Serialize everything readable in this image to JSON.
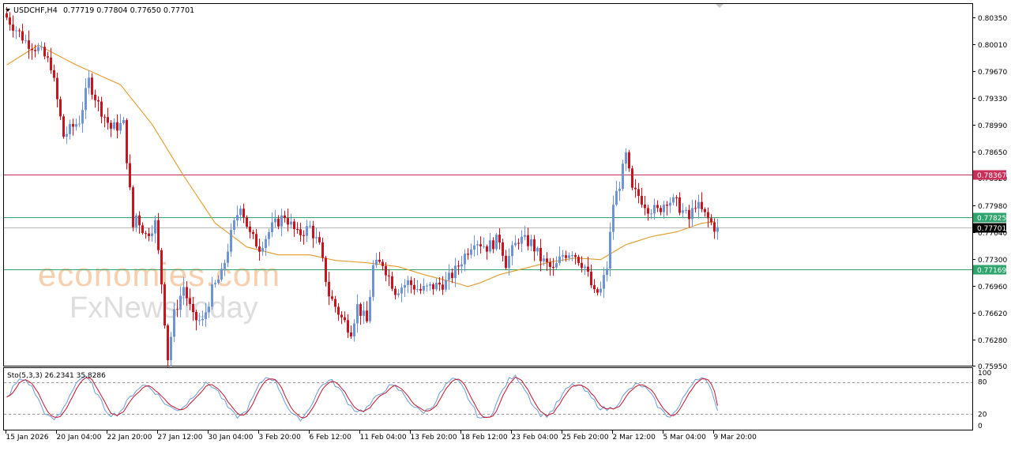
{
  "header": {
    "symbol": "USDCHF,H4",
    "ohlc": "0.77719 0.77804 0.77650 0.77701"
  },
  "watermark": {
    "line1": "economies.com",
    "line2": "FxNewsToday"
  },
  "colors": {
    "bull": "#6d94d8",
    "bear": "#d0101a",
    "ma": "#e39a28",
    "resistance": "#c8305a",
    "support": "#2fa56d",
    "current": "#000000",
    "stoch_main": "#6b9bd8",
    "stoch_signal": "#c4142a"
  },
  "chart_data": {
    "type": "candlestick",
    "symbol": "USDCHF",
    "timeframe": "H4",
    "ylim": [
      0.7595,
      0.8052
    ],
    "y_ticks": [
      "0.80350",
      "0.80010",
      "0.79670",
      "0.79330",
      "0.78990",
      "0.78650",
      "0.78320",
      "0.77980",
      "0.77640",
      "0.77300",
      "0.76960",
      "0.76620",
      "0.76280",
      "0.75950"
    ],
    "x_labels": [
      {
        "label": "15 Jan 2026",
        "bar": 0
      },
      {
        "label": "20 Jan 04:00",
        "bar": 16
      },
      {
        "label": "22 Jan 20:00",
        "bar": 32
      },
      {
        "label": "27 Jan 12:00",
        "bar": 48
      },
      {
        "label": "30 Jan 04:00",
        "bar": 64
      },
      {
        "label": "3 Feb 20:00",
        "bar": 80
      },
      {
        "label": "6 Feb 12:00",
        "bar": 96
      },
      {
        "label": "11 Feb 04:00",
        "bar": 112
      },
      {
        "label": "13 Feb 20:00",
        "bar": 128
      },
      {
        "label": "18 Feb 12:00",
        "bar": 144
      },
      {
        "label": "23 Feb 04:00",
        "bar": 160
      },
      {
        "label": "25 Feb 20:00",
        "bar": 176
      },
      {
        "label": "2 Mar 12:00",
        "bar": 192
      },
      {
        "label": "5 Mar 04:00",
        "bar": 208
      },
      {
        "label": "9 Mar 20:00",
        "bar": 224
      }
    ],
    "levels": [
      {
        "price": 0.78367,
        "label": "0.78367",
        "role": "resistance"
      },
      {
        "price": 0.77825,
        "label": "0.77825",
        "role": "support"
      },
      {
        "price": 0.77169,
        "label": "0.77169",
        "role": "support"
      },
      {
        "price": 0.77701,
        "label": "0.77701",
        "role": "current"
      }
    ],
    "waypoints": [
      [
        0,
        0.8035
      ],
      [
        6,
        0.8005
      ],
      [
        10,
        0.7995
      ],
      [
        14,
        0.7975
      ],
      [
        18,
        0.7885
      ],
      [
        23,
        0.7905
      ],
      [
        26,
        0.7955
      ],
      [
        29,
        0.7925
      ],
      [
        33,
        0.7895
      ],
      [
        37,
        0.79
      ],
      [
        39,
        0.7815
      ],
      [
        40,
        0.777
      ],
      [
        41,
        0.7785
      ],
      [
        44,
        0.776
      ],
      [
        47,
        0.7775
      ],
      [
        49,
        0.77
      ],
      [
        51,
        0.7605
      ],
      [
        53,
        0.766
      ],
      [
        56,
        0.7695
      ],
      [
        59,
        0.7655
      ],
      [
        62,
        0.765
      ],
      [
        65,
        0.769
      ],
      [
        68,
        0.771
      ],
      [
        71,
        0.776
      ],
      [
        74,
        0.78
      ],
      [
        77,
        0.776
      ],
      [
        80,
        0.7745
      ],
      [
        84,
        0.777
      ],
      [
        88,
        0.7785
      ],
      [
        92,
        0.776
      ],
      [
        96,
        0.777
      ],
      [
        99,
        0.7745
      ],
      [
        102,
        0.7685
      ],
      [
        106,
        0.7655
      ],
      [
        109,
        0.764
      ],
      [
        111,
        0.767
      ],
      [
        114,
        0.765
      ],
      [
        116,
        0.772
      ],
      [
        119,
        0.7725
      ],
      [
        123,
        0.769
      ],
      [
        127,
        0.77
      ],
      [
        131,
        0.769
      ],
      [
        135,
        0.7695
      ],
      [
        139,
        0.77
      ],
      [
        142,
        0.7715
      ],
      [
        145,
        0.7735
      ],
      [
        148,
        0.7755
      ],
      [
        152,
        0.7745
      ],
      [
        156,
        0.7755
      ],
      [
        158,
        0.7725
      ],
      [
        162,
        0.7755
      ],
      [
        166,
        0.775
      ],
      [
        169,
        0.773
      ],
      [
        173,
        0.7715
      ],
      [
        176,
        0.7735
      ],
      [
        179,
        0.774
      ],
      [
        183,
        0.772
      ],
      [
        186,
        0.7685
      ],
      [
        188,
        0.769
      ],
      [
        190,
        0.772
      ],
      [
        192,
        0.78
      ],
      [
        194,
        0.7825
      ],
      [
        196,
        0.786
      ],
      [
        198,
        0.7815
      ],
      [
        200,
        0.781
      ],
      [
        203,
        0.7795
      ],
      [
        206,
        0.779
      ],
      [
        209,
        0.7805
      ],
      [
        212,
        0.78
      ],
      [
        214,
        0.779
      ],
      [
        216,
        0.778
      ],
      [
        218,
        0.78
      ],
      [
        221,
        0.7785
      ],
      [
        223,
        0.7775
      ],
      [
        224,
        0.77701
      ]
    ],
    "moving_average": [
      [
        0,
        0.7975
      ],
      [
        10,
        0.8
      ],
      [
        22,
        0.7975
      ],
      [
        36,
        0.795
      ],
      [
        46,
        0.79
      ],
      [
        56,
        0.7835
      ],
      [
        66,
        0.7775
      ],
      [
        76,
        0.7745
      ],
      [
        86,
        0.7735
      ],
      [
        96,
        0.7735
      ],
      [
        104,
        0.7728
      ],
      [
        114,
        0.7725
      ],
      [
        124,
        0.772
      ],
      [
        132,
        0.771
      ],
      [
        140,
        0.7702
      ],
      [
        146,
        0.7695
      ],
      [
        150,
        0.77
      ],
      [
        156,
        0.771
      ],
      [
        164,
        0.7718
      ],
      [
        172,
        0.7726
      ],
      [
        180,
        0.7731
      ],
      [
        188,
        0.7729
      ],
      [
        196,
        0.7748
      ],
      [
        204,
        0.7758
      ],
      [
        212,
        0.7764
      ],
      [
        220,
        0.7775
      ],
      [
        224,
        0.7777
      ]
    ],
    "stochastic": {
      "label": "Sto(5,3,3) 26.2341 35.8286",
      "main": 26.2341,
      "signal": 35.8286,
      "ylim": [
        0,
        100
      ],
      "levels": [
        80,
        20
      ],
      "y_ticks": [
        "100",
        "80",
        "20",
        "0"
      ]
    },
    "bar_count": 226
  }
}
